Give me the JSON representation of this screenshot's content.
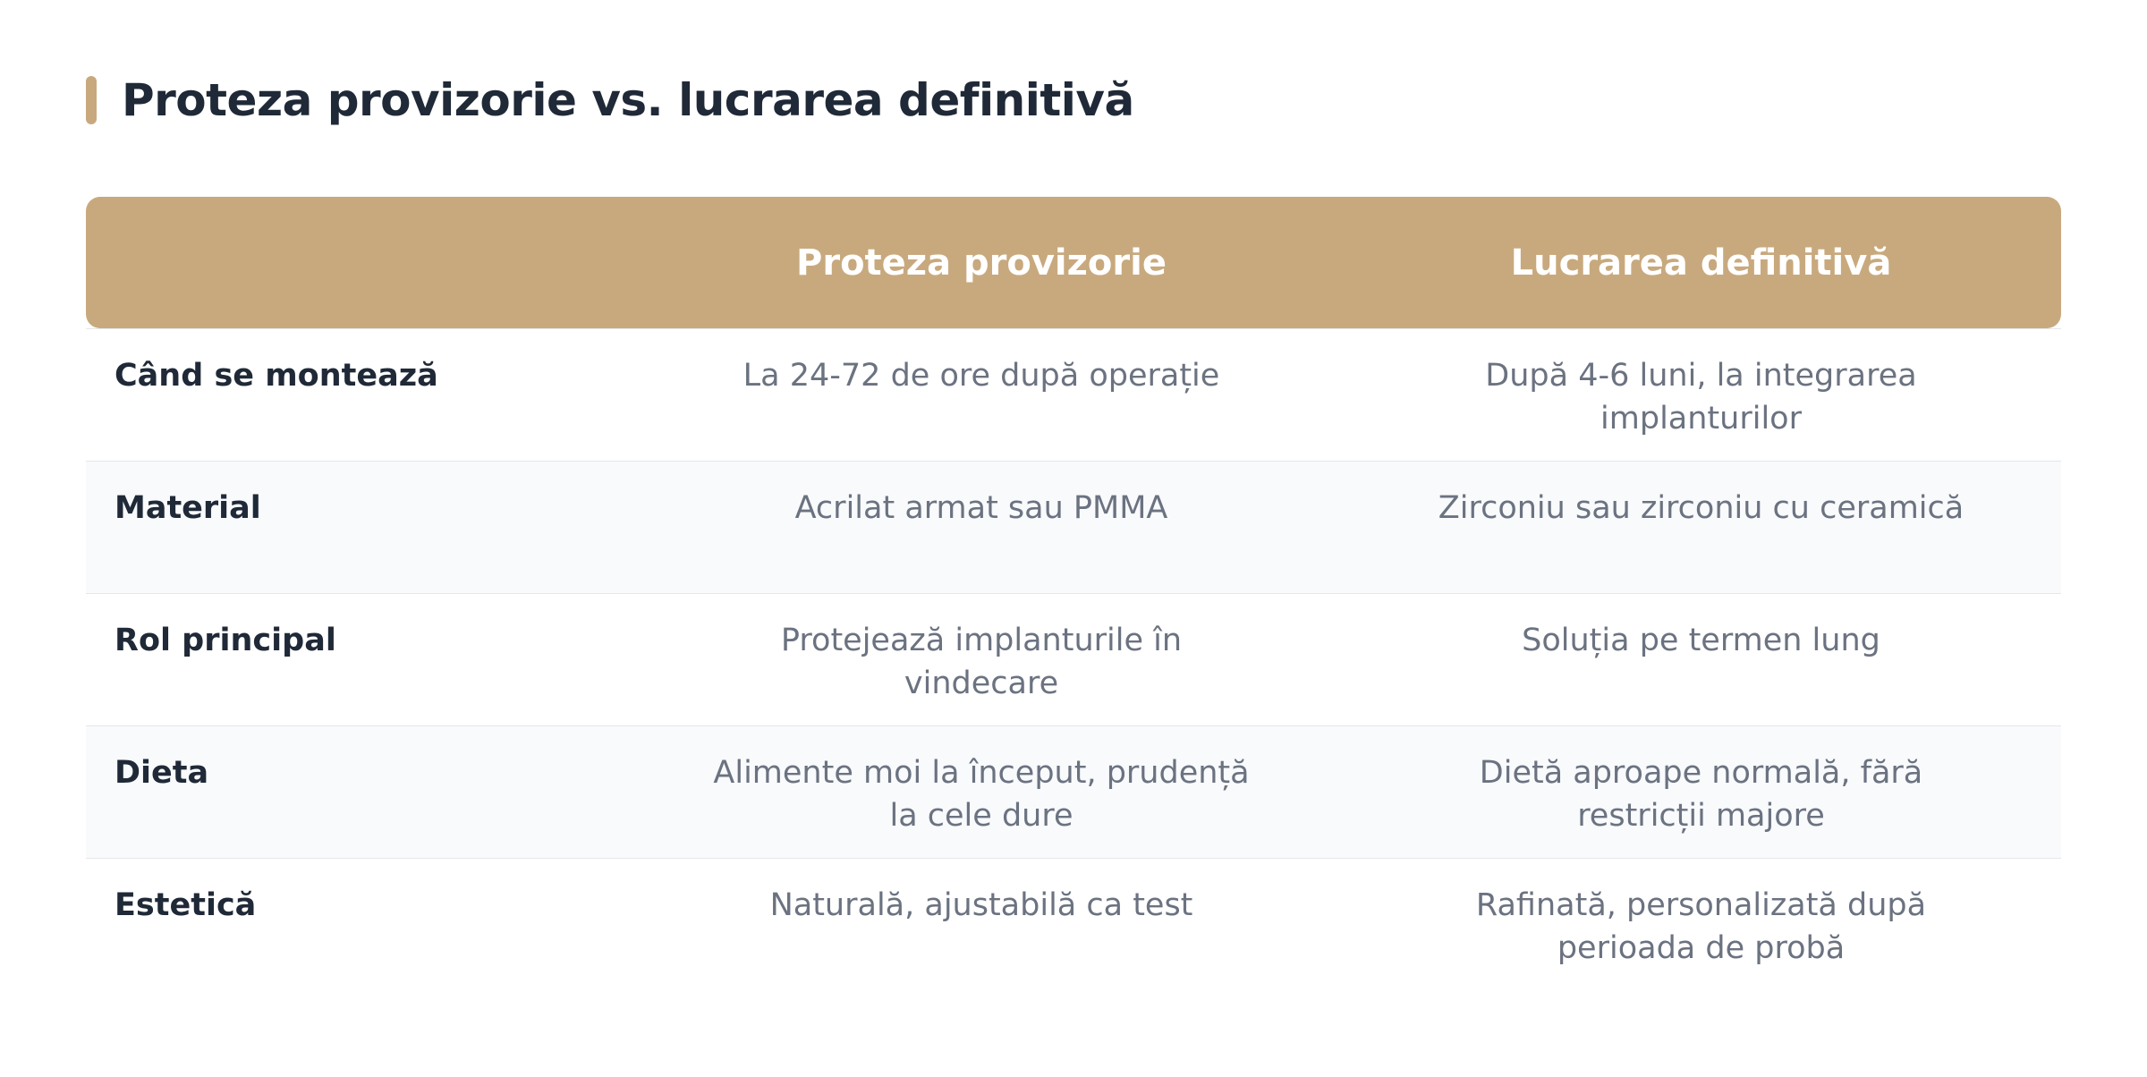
{
  "title": "Proteza provizorie vs. lucrarea definitivă",
  "table": {
    "headers": [
      "Proteza provizorie",
      "Lucrarea definitivă"
    ],
    "rows": [
      [
        "Când se montează",
        "La 24-72 de ore după operație",
        "După 4-6 luni, la integrarea implanturilor"
      ],
      [
        "Material",
        "Acrilat armat sau PMMA",
        "Zirconiu sau zirconiu cu ceramică"
      ],
      [
        "Rol principal",
        "Protejează implanturile în vindecare",
        "Soluția pe termen lung"
      ],
      [
        "Dieta",
        "Alimente moi la început, prudență la cele dure",
        "Dietă aproape normală, fără restricții majore"
      ],
      [
        "Estetică",
        "Naturală, ajustabilă ca test",
        "Rafinată, personalizată după perioada de probă"
      ]
    ]
  }
}
